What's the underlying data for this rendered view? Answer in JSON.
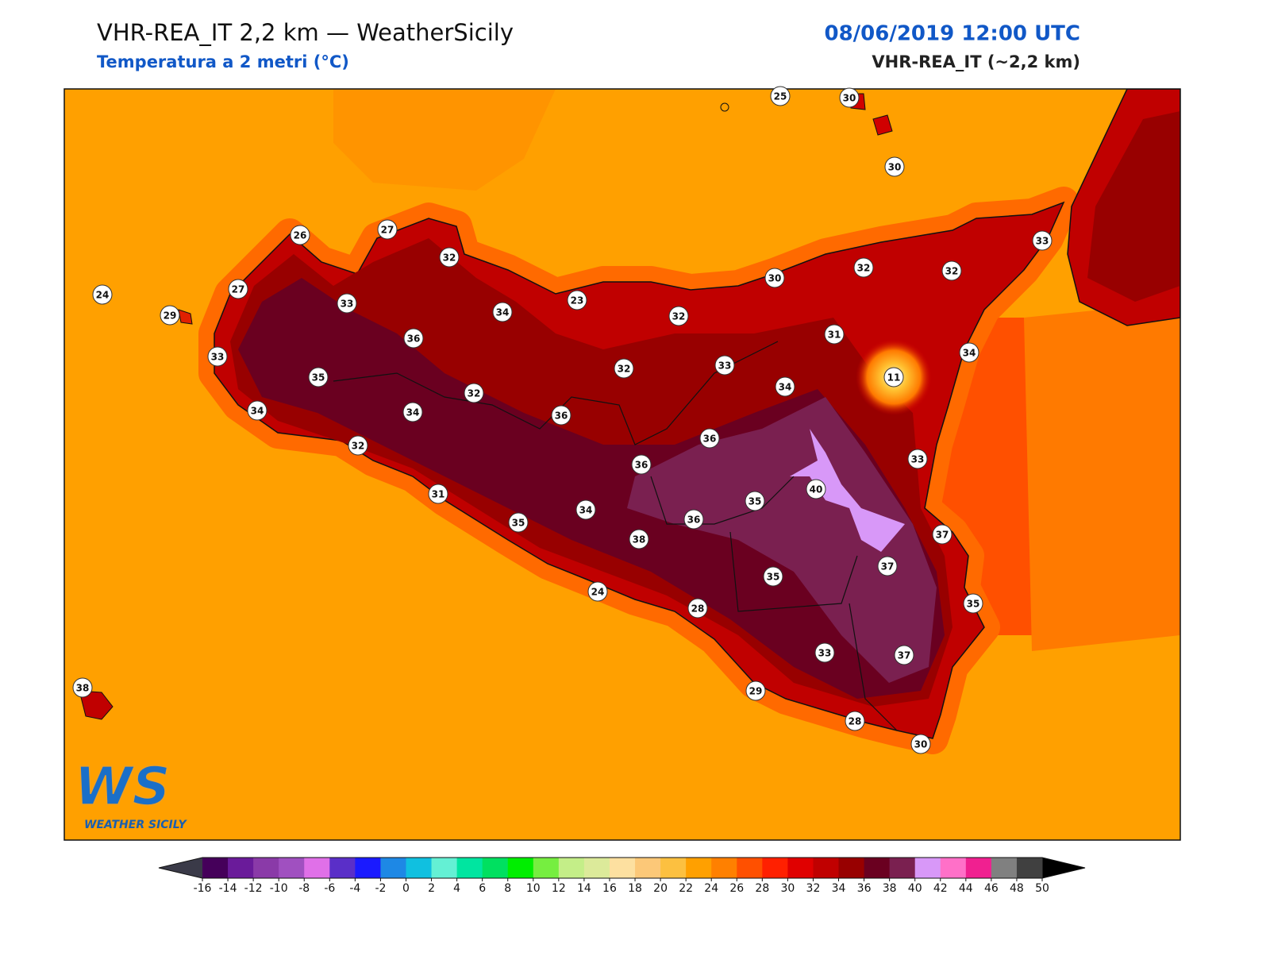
{
  "header": {
    "title": "VHR-REA_IT 2,2 km — WeatherSicily",
    "subtitle": "Temperatura a 2 metri (°C)",
    "datetime": "08/06/2019 12:00 UTC",
    "model": "VHR-REA_IT (~2,2 km)"
  },
  "logo": {
    "mark": "WS",
    "name": "WEATHER SICILY"
  },
  "stations": [
    25,
    30,
    30,
    26,
    27,
    32,
    33,
    32,
    32,
    30,
    24,
    27,
    33,
    29,
    34,
    23,
    32,
    31,
    33,
    36,
    34,
    33,
    32,
    35,
    11,
    34,
    32,
    34,
    34,
    36,
    36,
    32,
    36,
    33,
    40,
    31,
    35,
    34,
    35,
    36,
    37,
    38,
    37,
    35,
    24,
    35,
    28,
    33,
    37,
    38,
    29,
    28,
    30
  ],
  "colorbar": {
    "ticks": [
      -16,
      -14,
      -12,
      -10,
      -8,
      -6,
      -4,
      -2,
      0,
      2,
      4,
      6,
      8,
      10,
      12,
      14,
      16,
      18,
      20,
      22,
      24,
      26,
      28,
      30,
      32,
      34,
      36,
      38,
      40,
      42,
      44,
      46,
      48,
      50
    ],
    "colors": [
      "#45005a",
      "#6a1b9a",
      "#8a3aa8",
      "#a050c0",
      "#e070e8",
      "#5a2fc8",
      "#1a1aff",
      "#1e88e5",
      "#10c0e0",
      "#64f0d4",
      "#00e5a0",
      "#00e060",
      "#00ee00",
      "#76ee40",
      "#c4ee88",
      "#dcea9a",
      "#fde0a0",
      "#fcc878",
      "#fcc040",
      "#ffa000",
      "#ff8000",
      "#ff5000",
      "#ff2000",
      "#e00000",
      "#c00000",
      "#980000",
      "#6a0020",
      "#7a2050",
      "#d898f8",
      "#ff70c8",
      "#f02090",
      "#808080",
      "#404040"
    ],
    "under_color": "#3a3a48",
    "over_color": "#000000"
  }
}
